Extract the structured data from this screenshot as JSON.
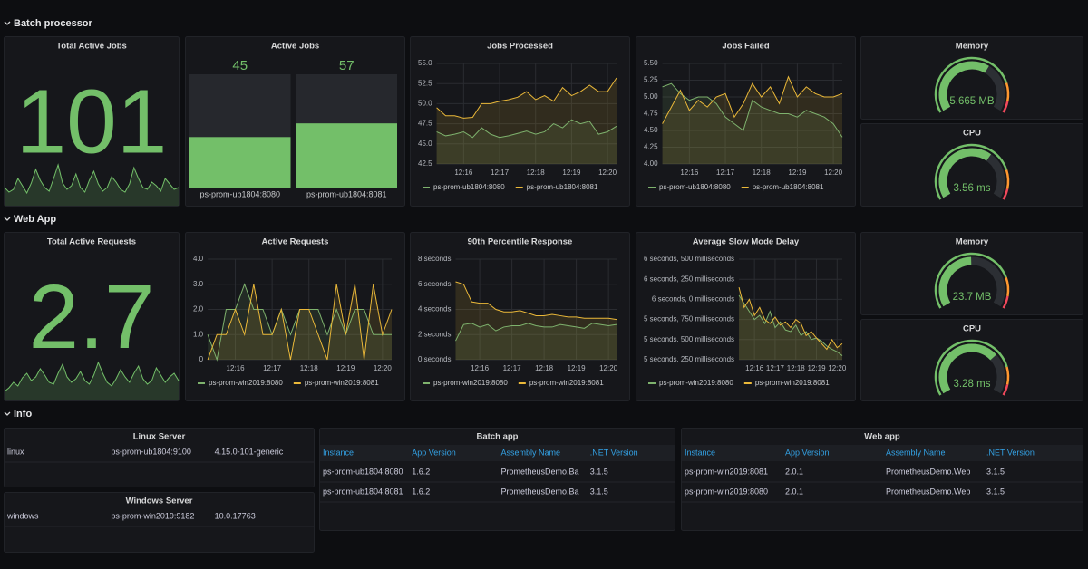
{
  "rows": [
    {
      "title": "Batch processor"
    },
    {
      "title": "Web App"
    },
    {
      "title": "Info"
    }
  ],
  "chart_data": [
    {
      "type": "stat",
      "title": "Total Active Jobs",
      "value": 101,
      "color": "#73bf69",
      "sparkline": {
        "values": [
          20,
          15,
          18,
          30,
          22,
          14,
          25,
          40,
          28,
          20,
          16,
          30,
          45,
          25,
          18,
          22,
          35,
          20,
          15,
          28,
          38,
          24,
          16,
          20,
          32,
          26,
          18,
          15,
          24,
          42,
          30,
          20,
          18,
          26,
          22,
          16,
          30,
          24,
          18,
          20
        ],
        "ylim": [
          0,
          60
        ]
      }
    },
    {
      "type": "bargauge",
      "title": "Active Jobs",
      "categories": [
        "ps-prom-ub1804:8080",
        "ps-prom-ub1804:8081"
      ],
      "values": [
        45,
        57
      ],
      "ylim": [
        0,
        100
      ],
      "color": "#73bf69"
    },
    {
      "type": "line",
      "title": "Jobs Processed",
      "categories": [
        null,
        null,
        null,
        "12:16",
        null,
        null,
        null,
        "12:17",
        null,
        null,
        null,
        "12:18",
        null,
        null,
        null,
        "12:19",
        null,
        null,
        null,
        "12:20",
        null
      ],
      "series": [
        {
          "name": "ps-prom-ub1804:8080",
          "color": "#7eb26d",
          "values": [
            46.5,
            46.0,
            46.2,
            46.5,
            45.8,
            47.0,
            46.2,
            45.8,
            46.0,
            46.3,
            46.6,
            46.2,
            46.5,
            47.5,
            47.0,
            48.0,
            47.5,
            47.8,
            46.2,
            46.5,
            47.2
          ]
        },
        {
          "name": "ps-prom-ub1804:8081",
          "color": "#eab839",
          "values": [
            49.5,
            48.5,
            48.5,
            48.2,
            48.3,
            50.0,
            50.0,
            50.3,
            50.5,
            50.8,
            51.5,
            50.5,
            51.0,
            50.3,
            52.0,
            51.0,
            51.5,
            52.3,
            51.5,
            51.5,
            53.2
          ]
        }
      ],
      "ylim": [
        42.5,
        55
      ],
      "yticks": [
        42.5,
        {
          "value": 45,
          "label": "45.0"
        },
        47.5,
        {
          "value": 50,
          "label": "50.0"
        },
        52.5,
        {
          "value": 55,
          "label": "55.0"
        }
      ],
      "grid": true
    },
    {
      "type": "line",
      "title": "Jobs Failed",
      "categories": [
        null,
        null,
        null,
        "12:16",
        null,
        null,
        null,
        "12:17",
        null,
        null,
        null,
        "12:18",
        null,
        null,
        null,
        "12:19",
        null,
        null,
        null,
        "12:20",
        null
      ],
      "series": [
        {
          "name": "ps-prom-ub1804:8080",
          "color": "#7eb26d",
          "values": [
            5.15,
            5.2,
            5.05,
            4.95,
            5.0,
            5.0,
            4.9,
            4.7,
            4.6,
            4.5,
            4.95,
            4.85,
            4.8,
            4.75,
            4.75,
            4.7,
            4.8,
            4.75,
            4.7,
            4.6,
            4.4
          ]
        },
        {
          "name": "ps-prom-ub1804:8081",
          "color": "#eab839",
          "values": [
            4.6,
            4.85,
            5.1,
            4.8,
            4.95,
            4.85,
            5.0,
            5.05,
            4.7,
            4.9,
            5.2,
            5.0,
            5.15,
            4.9,
            5.3,
            5.0,
            5.15,
            5.05,
            5.0,
            5.0,
            5.05
          ]
        }
      ],
      "ylim": [
        4,
        5.5
      ],
      "yticks": [
        {
          "value": 4,
          "label": "4.00"
        },
        4.25,
        {
          "value": 4.5,
          "label": "4.50"
        },
        4.75,
        {
          "value": 5,
          "label": "5.00"
        },
        5.25,
        {
          "value": 5.5,
          "label": "5.50"
        }
      ],
      "grid": true
    },
    {
      "type": "gauge",
      "title": "Memory",
      "value": 5.665,
      "value_label": "5.665 MB",
      "ylim": [
        0,
        9
      ],
      "color": "#73bf69",
      "thresholds": [
        {
          "value": 7.2,
          "color": "#ff9830"
        },
        {
          "value": 8.3,
          "color": "#f2495c"
        }
      ]
    },
    {
      "type": "gauge",
      "title": "CPU",
      "value": 3.56,
      "value_label": "3.56 ms",
      "ylim": [
        0,
        5.5
      ],
      "color": "#73bf69",
      "thresholds": [
        {
          "value": 4.4,
          "color": "#ff9830"
        },
        {
          "value": 5.1,
          "color": "#f2495c"
        }
      ]
    },
    {
      "type": "stat",
      "title": "Total Active Requests",
      "value": 2.7,
      "color": "#73bf69",
      "sparkline": {
        "values": [
          10,
          14,
          20,
          16,
          25,
          30,
          22,
          26,
          35,
          28,
          20,
          18,
          30,
          40,
          26,
          20,
          24,
          32,
          22,
          18,
          28,
          42,
          30,
          20,
          16,
          24,
          34,
          26,
          20,
          30,
          38,
          24,
          18,
          22,
          36,
          28,
          20,
          26,
          30,
          22
        ],
        "ylim": [
          0,
          60
        ]
      }
    },
    {
      "type": "line",
      "title": "Active Requests",
      "categories": [
        null,
        null,
        null,
        "12:16",
        null,
        null,
        null,
        "12:17",
        null,
        null,
        null,
        "12:18",
        null,
        null,
        null,
        "12:19",
        null,
        null,
        null,
        "12:20",
        null
      ],
      "series": [
        {
          "name": "ps-prom-win2019:8080",
          "color": "#7eb26d",
          "values": [
            1,
            0,
            2,
            2,
            3,
            2,
            2,
            1,
            2,
            1,
            2,
            2,
            2,
            1,
            2,
            1,
            2,
            2,
            1,
            1,
            1
          ]
        },
        {
          "name": "ps-prom-win2019:8081",
          "color": "#eab839",
          "values": [
            0,
            1,
            1,
            2,
            1,
            3,
            1,
            1,
            2,
            0,
            2,
            2,
            1,
            0,
            3,
            1,
            3,
            0,
            3,
            1,
            2
          ]
        }
      ],
      "ylim": [
        0,
        4
      ],
      "yticks": [
        0,
        {
          "value": 1,
          "label": "1.0"
        },
        {
          "value": 2,
          "label": "2.0"
        },
        {
          "value": 3,
          "label": "3.0"
        },
        {
          "value": 4,
          "label": "4.0"
        }
      ],
      "grid": true
    },
    {
      "type": "line",
      "title": "90th Percentile Response",
      "categories": [
        null,
        null,
        null,
        "12:16",
        null,
        null,
        null,
        "12:17",
        null,
        null,
        null,
        "12:18",
        null,
        null,
        null,
        "12:19",
        null,
        null,
        null,
        "12:20",
        null
      ],
      "series": [
        {
          "name": "ps-prom-win2019:8080",
          "color": "#7eb26d",
          "values": [
            1.5,
            2.8,
            2.9,
            2.6,
            2.8,
            2.3,
            2.6,
            2.7,
            2.7,
            2.9,
            2.7,
            2.6,
            2.6,
            2.8,
            2.7,
            2.6,
            2.5,
            2.9,
            2.8,
            2.7,
            2.8
          ]
        },
        {
          "name": "ps-prom-win2019:8081",
          "color": "#eab839",
          "values": [
            6.2,
            6.0,
            4.6,
            4.5,
            4.5,
            4.0,
            3.8,
            3.8,
            3.9,
            3.7,
            3.5,
            3.5,
            3.6,
            3.5,
            3.4,
            3.4,
            3.3,
            3.3,
            3.3,
            3.3,
            3.2
          ]
        }
      ],
      "ylim": [
        0,
        8
      ],
      "yticks": [
        {
          "value": 0,
          "label": "0 seconds"
        },
        {
          "value": 2,
          "label": "2 seconds"
        },
        {
          "value": 4,
          "label": "4 seconds"
        },
        {
          "value": 6,
          "label": "6 seconds"
        },
        {
          "value": 8,
          "label": "8 seconds"
        }
      ],
      "grid": true
    },
    {
      "type": "line",
      "title": "Average Slow Mode Delay",
      "categories": [
        null,
        null,
        null,
        "12:16",
        null,
        null,
        null,
        "12:17",
        null,
        null,
        null,
        "12:18",
        null,
        null,
        null,
        "12:19",
        null,
        null,
        null,
        "12:20",
        null
      ],
      "series": [
        {
          "name": "ps-prom-win2019:8080",
          "color": "#7eb26d",
          "values": [
            6.05,
            5.95,
            5.85,
            5.75,
            5.8,
            5.7,
            5.85,
            5.65,
            5.72,
            5.62,
            5.6,
            5.68,
            5.55,
            5.6,
            5.5,
            5.52,
            5.48,
            5.42,
            5.38,
            5.35,
            5.3
          ]
        },
        {
          "name": "ps-prom-win2019:8081",
          "color": "#eab839",
          "values": [
            6.15,
            5.9,
            6.0,
            5.8,
            5.9,
            5.75,
            5.7,
            5.78,
            5.68,
            5.72,
            5.65,
            5.75,
            5.7,
            5.55,
            5.6,
            5.52,
            5.45,
            5.38,
            5.5,
            5.4,
            5.45
          ]
        }
      ],
      "ylim": [
        5.25,
        6.5
      ],
      "yticks": [
        {
          "value": 5.25,
          "label": "5 seconds, 250 milliseconds"
        },
        {
          "value": 5.5,
          "label": "5 seconds, 500 milliseconds"
        },
        {
          "value": 5.75,
          "label": "5 seconds, 750 milliseconds"
        },
        {
          "value": 6,
          "label": "6 seconds, 0 milliseconds"
        },
        {
          "value": 6.25,
          "label": "6 seconds, 250 milliseconds"
        },
        {
          "value": 6.5,
          "label": "6 seconds, 500 milliseconds"
        }
      ],
      "grid": true
    },
    {
      "type": "gauge",
      "title": "Memory",
      "value": 23.7,
      "value_label": "23.7 MB",
      "ylim": [
        0,
        48
      ],
      "color": "#73bf69",
      "thresholds": [
        {
          "value": 38,
          "color": "#ff9830"
        },
        {
          "value": 44,
          "color": "#f2495c"
        }
      ]
    },
    {
      "type": "gauge",
      "title": "CPU",
      "value": 3.28,
      "value_label": "3.28 ms",
      "ylim": [
        0,
        4.7
      ],
      "color": "#73bf69",
      "thresholds": [
        {
          "value": 3.8,
          "color": "#ff9830"
        },
        {
          "value": 4.35,
          "color": "#f2495c"
        }
      ]
    }
  ],
  "tables": [
    {
      "title": "Linux Server",
      "rows": [
        [
          "linux",
          "ps-prom-ub1804:9100",
          "4.15.0-101-generic"
        ]
      ]
    },
    {
      "title": "Windows Server",
      "rows": [
        [
          "windows",
          "ps-prom-win2019:9182",
          "10.0.17763"
        ]
      ]
    },
    {
      "title": "Batch app",
      "columns": [
        "Instance",
        "App Version",
        "Assembly Name",
        ".NET Version"
      ],
      "rows": [
        [
          "ps-prom-ub1804:8080",
          "1.6.2",
          "PrometheusDemo.Ba",
          "3.1.5"
        ],
        [
          "ps-prom-ub1804:8081",
          "1.6.2",
          "PrometheusDemo.Ba",
          "3.1.5"
        ]
      ]
    },
    {
      "title": "Web app",
      "columns": [
        "Instance",
        "App Version",
        "Assembly Name",
        ".NET Version"
      ],
      "rows": [
        [
          "ps-prom-win2019:8081",
          "2.0.1",
          "PrometheusDemo.Web",
          "3.1.5"
        ],
        [
          "ps-prom-win2019:8080",
          "2.0.1",
          "PrometheusDemo.Web",
          "3.1.5"
        ]
      ]
    }
  ]
}
